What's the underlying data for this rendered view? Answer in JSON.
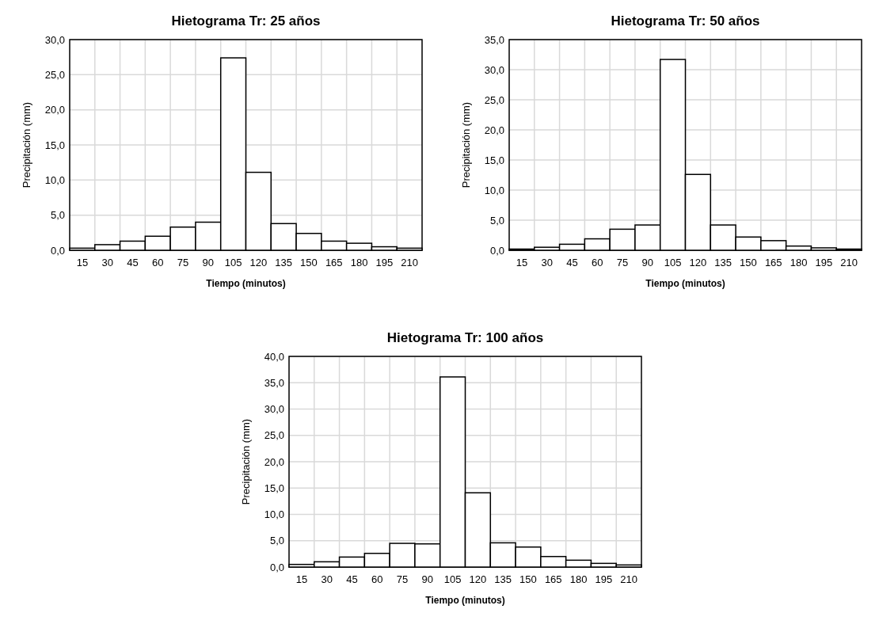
{
  "chart_data": [
    {
      "type": "bar",
      "title": "Hietograma Tr: 25 años",
      "xlabel": "Tiempo (minutos)",
      "ylabel": "Precipitación (mm)",
      "categories": [
        "15",
        "30",
        "45",
        "60",
        "75",
        "90",
        "105",
        "120",
        "135",
        "150",
        "165",
        "180",
        "195",
        "210"
      ],
      "values": [
        0.3,
        0.8,
        1.3,
        2.0,
        3.3,
        4.0,
        27.4,
        11.1,
        3.8,
        2.4,
        1.3,
        1.0,
        0.5,
        0.3
      ],
      "color": "#ffffff",
      "ylim": [
        0,
        30
      ],
      "yticks": [
        {
          "value": 0,
          "label": "0,0"
        },
        {
          "value": 5,
          "label": "5,0"
        },
        {
          "value": 10,
          "label": "10,0"
        },
        {
          "value": 15,
          "label": "15,0"
        },
        {
          "value": 20,
          "label": "20,0"
        },
        {
          "value": 25,
          "label": "25,0"
        },
        {
          "value": 30,
          "label": "30,0"
        }
      ],
      "grid": true
    },
    {
      "type": "bar",
      "title": "Hietograma Tr: 50 años",
      "xlabel": "Tiempo (minutos)",
      "ylabel": "Precipitación (mm)",
      "categories": [
        "15",
        "30",
        "45",
        "60",
        "75",
        "90",
        "105",
        "120",
        "135",
        "150",
        "165",
        "180",
        "195",
        "210"
      ],
      "values": [
        0.2,
        0.5,
        1.0,
        1.9,
        3.5,
        4.2,
        31.7,
        12.6,
        4.2,
        2.2,
        1.6,
        0.7,
        0.4,
        0.2
      ],
      "color": "#ffffff",
      "ylim": [
        0,
        35
      ],
      "yticks": [
        {
          "value": 0,
          "label": "0,0"
        },
        {
          "value": 5,
          "label": "5,0"
        },
        {
          "value": 10,
          "label": "10,0"
        },
        {
          "value": 15,
          "label": "15,0"
        },
        {
          "value": 20,
          "label": "20,0"
        },
        {
          "value": 25,
          "label": "25,0"
        },
        {
          "value": 30,
          "label": "30,0"
        },
        {
          "value": 35,
          "label": "35,0"
        }
      ],
      "grid": true
    },
    {
      "type": "bar",
      "title": "Hietograma Tr: 100 años",
      "xlabel": "Tiempo (minutos)",
      "ylabel": "Precipitación (mm)",
      "categories": [
        "15",
        "30",
        "45",
        "60",
        "75",
        "90",
        "105",
        "120",
        "135",
        "150",
        "165",
        "180",
        "195",
        "210"
      ],
      "values": [
        0.5,
        1.0,
        1.9,
        2.6,
        4.5,
        4.4,
        36.1,
        14.1,
        4.6,
        3.8,
        2.0,
        1.3,
        0.7,
        0.4
      ],
      "color": "#ffffff",
      "ylim": [
        0,
        40
      ],
      "yticks": [
        {
          "value": 0,
          "label": "0,0"
        },
        {
          "value": 5,
          "label": "5,0"
        },
        {
          "value": 10,
          "label": "10,0"
        },
        {
          "value": 15,
          "label": "15,0"
        },
        {
          "value": 20,
          "label": "20,0"
        },
        {
          "value": 25,
          "label": "25,0"
        },
        {
          "value": 30,
          "label": "30,0"
        },
        {
          "value": 35,
          "label": "35,0"
        },
        {
          "value": 40,
          "label": "40,0"
        }
      ],
      "grid": true
    }
  ]
}
